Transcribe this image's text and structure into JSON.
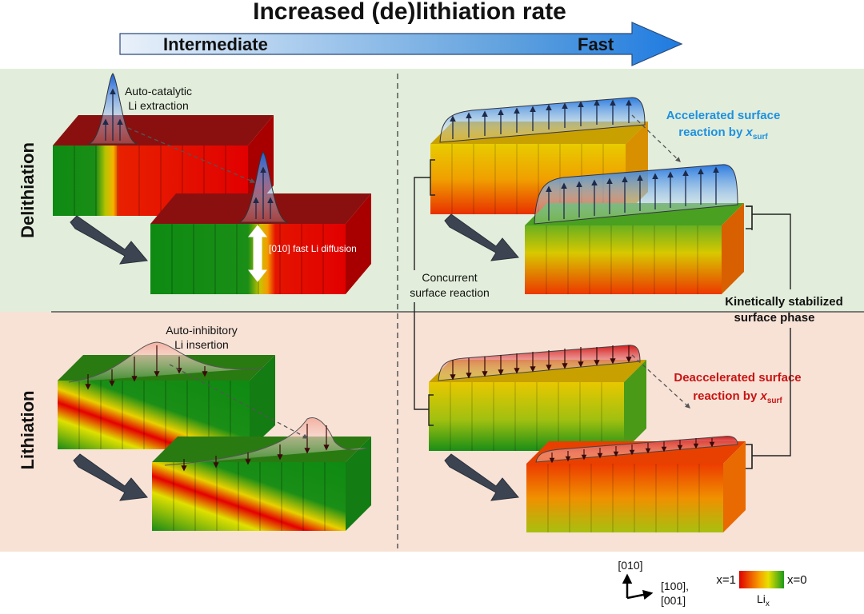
{
  "title": "Increased (de)lithiation rate",
  "rate_arrow": {
    "left_label": "Intermediate",
    "right_label": "Fast"
  },
  "row_labels": {
    "top": "Delithiation",
    "bottom": "Lithiation"
  },
  "annotations": {
    "auto_catalytic_1": "Auto-catalytic",
    "auto_catalytic_2": "Li extraction",
    "fast_diffusion": "[010] fast Li diffusion",
    "auto_inhibitory_1": "Auto-inhibitory",
    "auto_inhibitory_2": "Li insertion",
    "concurrent_1": "Concurrent",
    "concurrent_2": "surface reaction",
    "kinetic_1": "Kinetically stabilized",
    "kinetic_2": "surface phase",
    "accelerated_1": "Accelerated surface",
    "accelerated_2": "reaction by ",
    "deaccelerated_1": "Deaccelerated surface",
    "deaccelerated_2": "reaction by ",
    "x_var": "x",
    "x_sub": "surf"
  },
  "axes": {
    "vertical": "[010]",
    "horizontal_1": "[100],",
    "horizontal_2": "[001]"
  },
  "legend": {
    "left": "x=1",
    "right": "x=0",
    "label": "Li",
    "label_sub": "x"
  },
  "colors": {
    "delith_bg": "#e2eedb",
    "lith_bg": "#f8e2d6",
    "accent_blue": "#1e90e0",
    "accent_red": "#c81414",
    "arrow_gray": "#3c4452"
  }
}
